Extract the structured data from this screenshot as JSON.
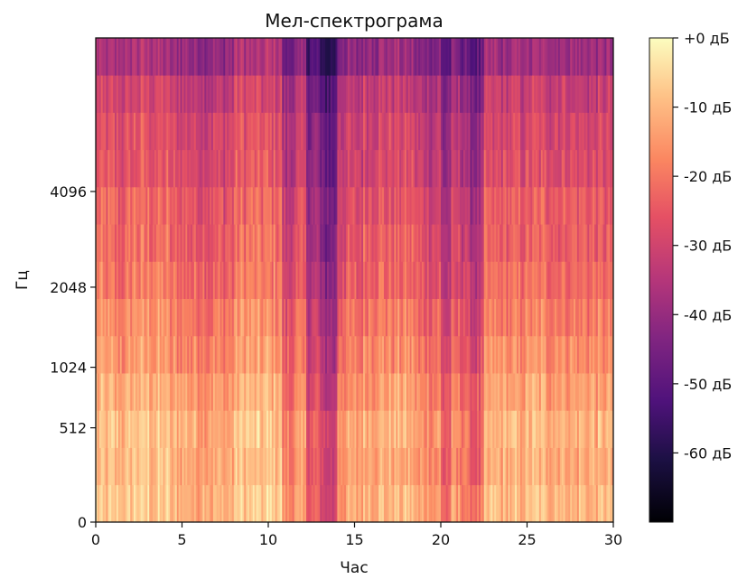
{
  "chart_data": {
    "type": "heatmap",
    "title": "Мел-спектрограма",
    "xlabel": "Час",
    "ylabel": "Гц",
    "xlim": [
      0,
      30
    ],
    "x_ticks": [
      0,
      5,
      10,
      15,
      20,
      25,
      30
    ],
    "y_scale": "mel",
    "y_ticks": [
      0,
      512,
      1024,
      2048,
      4096
    ],
    "n_mel_bands": 13,
    "colormap": "magma",
    "colorbar": {
      "range_db": [
        -70,
        0
      ],
      "ticks": [
        0,
        -10,
        -20,
        -30,
        -40,
        -50,
        -60
      ],
      "tick_labels": [
        "+0 дБ",
        "-10 дБ",
        "-20 дБ",
        "-30 дБ",
        "-40 дБ",
        "-50 дБ",
        "-60 дБ"
      ]
    },
    "band_levels_db": [
      -8,
      -10,
      -9,
      -12,
      -15,
      -17,
      -20,
      -22,
      -23,
      -26,
      -27,
      -30,
      -37
    ],
    "time_gain_db": [
      {
        "x": [
          0,
          1
        ],
        "gain": 0
      },
      {
        "x": [
          1,
          2
        ],
        "gain": -1
      },
      {
        "x": [
          2,
          4.2
        ],
        "gain": 1
      },
      {
        "x": [
          4.2,
          5.5
        ],
        "gain": -2
      },
      {
        "x": [
          5.5,
          8
        ],
        "gain": -3
      },
      {
        "x": [
          8,
          10.8
        ],
        "gain": 1
      },
      {
        "x": [
          10.8,
          11.4
        ],
        "gain": -10
      },
      {
        "x": [
          11.4,
          12.2
        ],
        "gain": -6
      },
      {
        "x": [
          12.2,
          13
        ],
        "gain": -15
      },
      {
        "x": [
          13,
          14
        ],
        "gain": -22
      },
      {
        "x": [
          14,
          15.5
        ],
        "gain": -5
      },
      {
        "x": [
          15.5,
          17
        ],
        "gain": -2
      },
      {
        "x": [
          17,
          18.5
        ],
        "gain": -2
      },
      {
        "x": [
          18.5,
          20
        ],
        "gain": -6
      },
      {
        "x": [
          20,
          20.6
        ],
        "gain": -14
      },
      {
        "x": [
          20.6,
          21.5
        ],
        "gain": -8
      },
      {
        "x": [
          21.5,
          22.5
        ],
        "gain": -14
      },
      {
        "x": [
          22.5,
          25
        ],
        "gain": -2
      },
      {
        "x": [
          25,
          27.5
        ],
        "gain": -1
      },
      {
        "x": [
          27.5,
          30
        ],
        "gain": -2
      }
    ]
  }
}
